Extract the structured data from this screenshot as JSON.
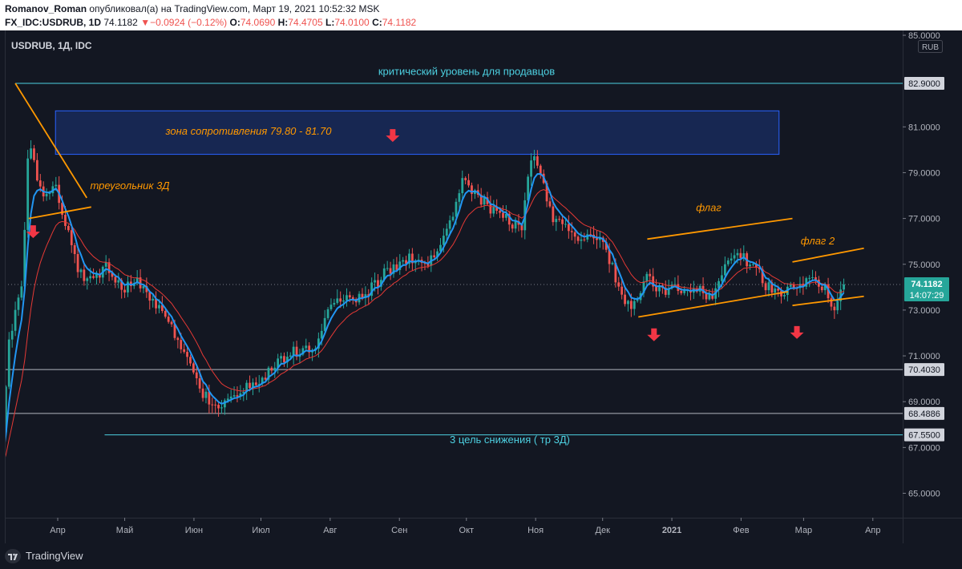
{
  "header": {
    "author": "Romanov_Roman",
    "published_text": "опубликовал(а) на TradingView.com, Март 19, 2021 10:52:32 MSK",
    "symbol": "FX_IDC:USDRUB, 1D",
    "last": "74.1182",
    "change": "−0.0924 (−0.12%)",
    "o_label": "O:",
    "o": "74.0690",
    "h_label": "H:",
    "h": "74.4705",
    "l_label": "L:",
    "l": "74.0100",
    "c_label": "C:",
    "c": "74.1182"
  },
  "chart_data": {
    "type": "candlestick",
    "symbol_label": "USDRUB, 1Д, IDC",
    "currency": "RUB",
    "ylim": [
      63.8,
      85.0
    ],
    "grid": false,
    "y_ticks": [
      {
        "label": "85.0000",
        "value": 85.0
      },
      {
        "label": "81.0000",
        "value": 81.0
      },
      {
        "label": "79.0000",
        "value": 79.0
      },
      {
        "label": "77.0000",
        "value": 77.0
      },
      {
        "label": "75.0000",
        "value": 75.0
      },
      {
        "label": "73.0000",
        "value": 73.0
      },
      {
        "label": "71.0000",
        "value": 71.0
      },
      {
        "label": "69.0000",
        "value": 69.0
      },
      {
        "label": "67.0000",
        "value": 67.0
      },
      {
        "label": "65.0000",
        "value": 65.0
      }
    ],
    "x_ticks": [
      {
        "label": "Апр",
        "date": "2020-04-01"
      },
      {
        "label": "Май",
        "date": "2020-05-01"
      },
      {
        "label": "Июн",
        "date": "2020-06-01"
      },
      {
        "label": "Июл",
        "date": "2020-07-01"
      },
      {
        "label": "Авг",
        "date": "2020-08-01"
      },
      {
        "label": "Сен",
        "date": "2020-09-01"
      },
      {
        "label": "Окт",
        "date": "2020-10-01"
      },
      {
        "label": "Ноя",
        "date": "2020-11-01"
      },
      {
        "label": "Дек",
        "date": "2020-12-01"
      },
      {
        "label": "2021",
        "date": "2021-01-01"
      },
      {
        "label": "Фев",
        "date": "2021-02-01"
      },
      {
        "label": "Мар",
        "date": "2021-03-01"
      },
      {
        "label": "Апр",
        "date": "2021-04-01"
      }
    ],
    "price_tags": [
      {
        "label": "82.9000",
        "value": 82.9
      },
      {
        "label": "70.4030",
        "value": 70.403
      },
      {
        "label": "68.4886",
        "value": 68.4886
      },
      {
        "label": "67.5500",
        "value": 67.55
      }
    ],
    "last_price": {
      "label": "74.1182",
      "value": 74.1182,
      "countdown": "14:07:29"
    },
    "close_path": [
      [
        "2020-03-06",
        66.0
      ],
      [
        "2020-03-10",
        71.5
      ],
      [
        "2020-03-16",
        74.0
      ],
      [
        "2020-03-19",
        80.2
      ],
      [
        "2020-03-24",
        78.5
      ],
      [
        "2020-03-27",
        78.0
      ],
      [
        "2020-03-31",
        78.4
      ],
      [
        "2020-04-02",
        77.8
      ],
      [
        "2020-04-06",
        76.3
      ],
      [
        "2020-04-10",
        74.7
      ],
      [
        "2020-04-16",
        74.3
      ],
      [
        "2020-04-23",
        75.0
      ],
      [
        "2020-04-30",
        74.0
      ],
      [
        "2020-05-07",
        74.3
      ],
      [
        "2020-05-14",
        73.4
      ],
      [
        "2020-05-20",
        72.7
      ],
      [
        "2020-05-27",
        71.3
      ],
      [
        "2020-06-03",
        69.6
      ],
      [
        "2020-06-10",
        68.7
      ],
      [
        "2020-06-17",
        69.0
      ],
      [
        "2020-06-23",
        69.5
      ],
      [
        "2020-06-30",
        69.9
      ],
      [
        "2020-07-06",
        70.5
      ],
      [
        "2020-07-13",
        71.0
      ],
      [
        "2020-07-20",
        71.4
      ],
      [
        "2020-07-24",
        71.0
      ],
      [
        "2020-07-31",
        73.0
      ],
      [
        "2020-08-05",
        73.3
      ],
      [
        "2020-08-10",
        73.6
      ],
      [
        "2020-08-14",
        73.5
      ],
      [
        "2020-08-20",
        74.0
      ],
      [
        "2020-08-27",
        74.8
      ],
      [
        "2020-09-03",
        75.2
      ],
      [
        "2020-09-10",
        75.3
      ],
      [
        "2020-09-17",
        75.1
      ],
      [
        "2020-09-24",
        77.0
      ],
      [
        "2020-09-29",
        78.5
      ],
      [
        "2020-10-02",
        78.5
      ],
      [
        "2020-10-07",
        77.9
      ],
      [
        "2020-10-14",
        77.3
      ],
      [
        "2020-10-20",
        76.9
      ],
      [
        "2020-10-26",
        76.6
      ],
      [
        "2020-10-30",
        79.8
      ],
      [
        "2020-11-03",
        79.3
      ],
      [
        "2020-11-09",
        76.6
      ],
      [
        "2020-11-13",
        77.0
      ],
      [
        "2020-11-18",
        76.2
      ],
      [
        "2020-11-24",
        76.3
      ],
      [
        "2020-11-30",
        76.3
      ],
      [
        "2020-12-03",
        75.4
      ],
      [
        "2020-12-07",
        74.4
      ],
      [
        "2020-12-11",
        73.4
      ],
      [
        "2020-12-17",
        73.2
      ],
      [
        "2020-12-21",
        74.6
      ],
      [
        "2020-12-24",
        74.0
      ],
      [
        "2020-12-29",
        73.9
      ],
      [
        "2021-01-06",
        74.0
      ],
      [
        "2021-01-13",
        73.9
      ],
      [
        "2021-01-19",
        73.6
      ],
      [
        "2021-01-25",
        75.0
      ],
      [
        "2021-01-29",
        75.6
      ],
      [
        "2021-02-03",
        75.2
      ],
      [
        "2021-02-08",
        74.8
      ],
      [
        "2021-02-12",
        74.0
      ],
      [
        "2021-02-17",
        73.8
      ],
      [
        "2021-02-24",
        73.9
      ],
      [
        "2021-03-01",
        74.2
      ],
      [
        "2021-03-05",
        74.3
      ],
      [
        "2021-03-10",
        74.0
      ],
      [
        "2021-03-15",
        73.1
      ],
      [
        "2021-03-19",
        74.1182
      ]
    ],
    "indicators": [
      {
        "type": "moving-average",
        "color": "#2196f3"
      },
      {
        "type": "moving-average",
        "color": "#e53935"
      }
    ]
  },
  "annotations": {
    "critical_level": "критический уровень для продавцов",
    "resistance_zone": "зона сопротивления 79.80 - 81.70",
    "resistance_zone_range": [
      79.8,
      81.7
    ],
    "triangle": "треугольник 3Д",
    "flag": "флаг",
    "flag2": "флаг 2",
    "target": "3 цель снижения ( тр 3Д)"
  },
  "colors": {
    "background": "#131722",
    "up": "#26a69a",
    "down": "#ef5350",
    "ma_fast": "#2196f3",
    "ma_slow": "#e53935",
    "level_line": "#4dd0e1",
    "pattern_line": "#ff9800",
    "arrow": "#f23645"
  },
  "footer": {
    "brand": "TradingView"
  }
}
